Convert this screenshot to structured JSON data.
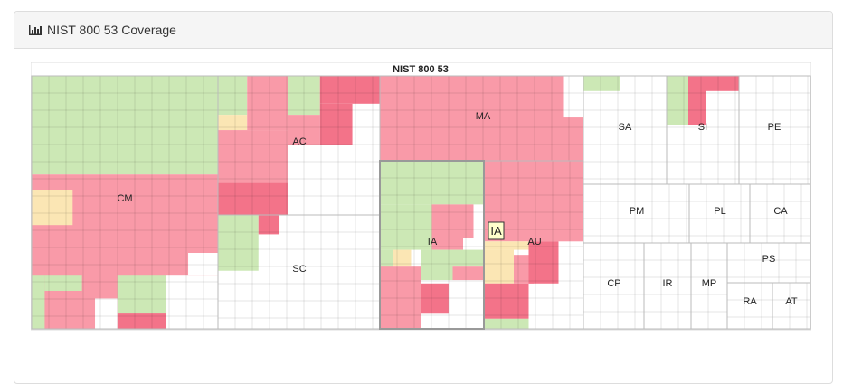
{
  "panel": {
    "title": "NIST 800 53 Coverage",
    "icon": "bar-chart-icon"
  },
  "chart_data": {
    "type": "treemap",
    "title": "NIST 800 53",
    "legend_colors": {
      "covered": "#cce8b5",
      "not_covered": "#f99aa8",
      "critical": "#f37389",
      "partial": "#fbe6b4",
      "none": "#ffffff"
    },
    "hover_label": "IA",
    "families": [
      {
        "name": "CM",
        "status": "mixed"
      },
      {
        "name": "AC",
        "status": "mixed"
      },
      {
        "name": "SC",
        "status": "mixed"
      },
      {
        "name": "MA",
        "status": "not_covered"
      },
      {
        "name": "IA",
        "status": "mixed"
      },
      {
        "name": "AU",
        "status": "mixed"
      },
      {
        "name": "SA",
        "status": "mixed"
      },
      {
        "name": "SI",
        "status": "mixed"
      },
      {
        "name": "PE",
        "status": "none"
      },
      {
        "name": "PM",
        "status": "none"
      },
      {
        "name": "PL",
        "status": "none"
      },
      {
        "name": "CA",
        "status": "none"
      },
      {
        "name": "CP",
        "status": "none"
      },
      {
        "name": "IR",
        "status": "none"
      },
      {
        "name": "MP",
        "status": "none"
      },
      {
        "name": "PS",
        "status": "none"
      },
      {
        "name": "RA",
        "status": "none"
      },
      {
        "name": "AT",
        "status": "none"
      }
    ]
  }
}
